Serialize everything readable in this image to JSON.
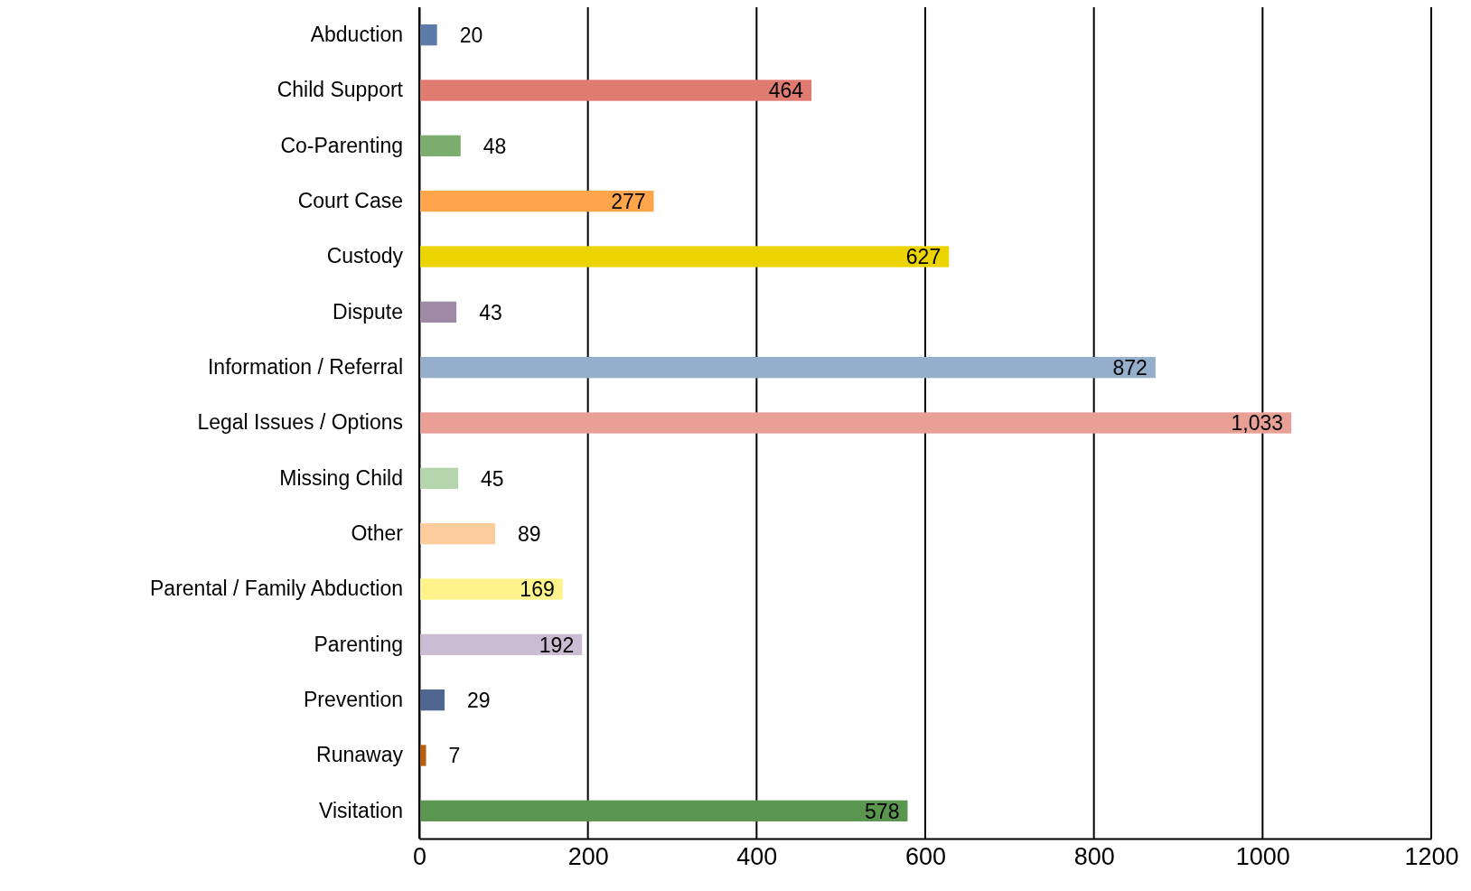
{
  "chart_data": {
    "type": "bar",
    "orientation": "horizontal",
    "categories": [
      "Abduction",
      "Child Support",
      "Co-Parenting",
      "Court Case",
      "Custody",
      "Dispute",
      "Information / Referral",
      "Legal Issues / Options",
      "Missing Child",
      "Other",
      "Parental / Family Abduction",
      "Parenting",
      "Prevention",
      "Runaway",
      "Visitation"
    ],
    "values": [
      20,
      464,
      48,
      277,
      627,
      43,
      872,
      1033,
      45,
      89,
      169,
      192,
      29,
      7,
      578
    ],
    "value_labels": [
      "20",
      "464",
      "48",
      "277",
      "627",
      "43",
      "872",
      "1,033",
      "45",
      "89",
      "169",
      "192",
      "29",
      "7",
      "578"
    ],
    "colors": [
      "#5b7ca8",
      "#e07b72",
      "#7aad6e",
      "#ffa64d",
      "#ecd400",
      "#9e8aa6",
      "#94aecb",
      "#e8a096",
      "#b5d6ac",
      "#fdcc9c",
      "#fdf38a",
      "#ccbcd3",
      "#4e6690",
      "#b85c0f",
      "#5a9650"
    ],
    "xlim": [
      0,
      1200
    ],
    "xticks": [
      0,
      200,
      400,
      600,
      800,
      1000,
      1200
    ],
    "grid": "x"
  }
}
